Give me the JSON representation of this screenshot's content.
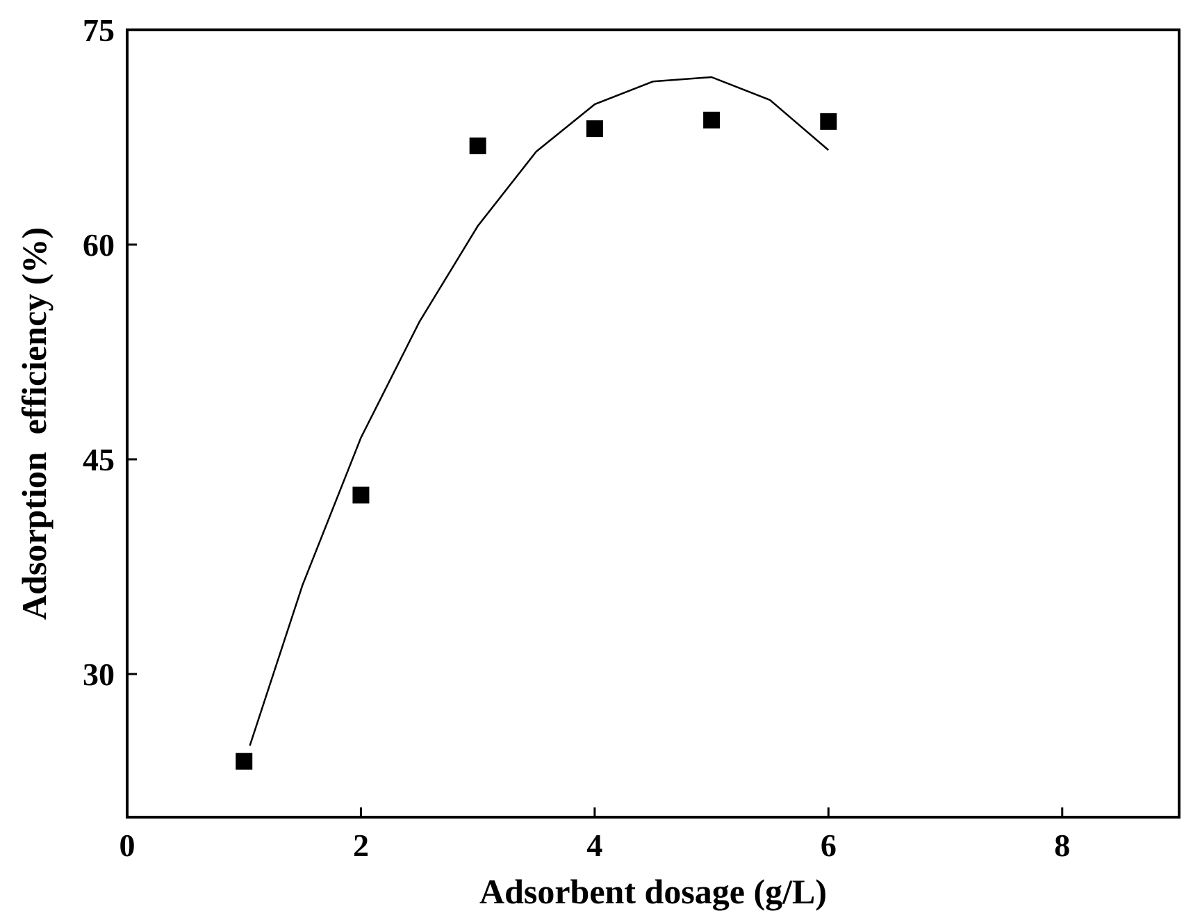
{
  "chart_data": {
    "type": "scatter",
    "title": "",
    "xlabel": "Adsorbent dosage (g/L)",
    "ylabel": "Adsorption  efficiency (%)",
    "xlim": [
      0,
      9
    ],
    "ylim": [
      20,
      75
    ],
    "xticks": [
      0,
      2,
      4,
      6,
      8
    ],
    "yticks": [
      30,
      45,
      60,
      75
    ],
    "x_tick_labels": [
      "0",
      "2",
      "4",
      "6",
      "8"
    ],
    "y_tick_labels": [
      "30",
      "45",
      "60",
      "75"
    ],
    "grid": false,
    "legend": "none",
    "series": [
      {
        "marker": "square",
        "color": "#000000",
        "x": [
          1,
          2,
          3,
          4,
          5,
          6
        ],
        "y": [
          23.9,
          42.5,
          66.9,
          68.1,
          68.7,
          68.6
        ]
      }
    ],
    "fit": {
      "type": "line",
      "color": "#000000",
      "x": [
        1.05,
        1.5,
        2,
        2.5,
        3,
        3.5,
        4,
        4.5,
        5,
        5.5,
        6
      ],
      "y": [
        25,
        36.2,
        46.5,
        54.6,
        61.3,
        66.5,
        69.8,
        71.4,
        71.7,
        70.1,
        66.6
      ]
    }
  }
}
